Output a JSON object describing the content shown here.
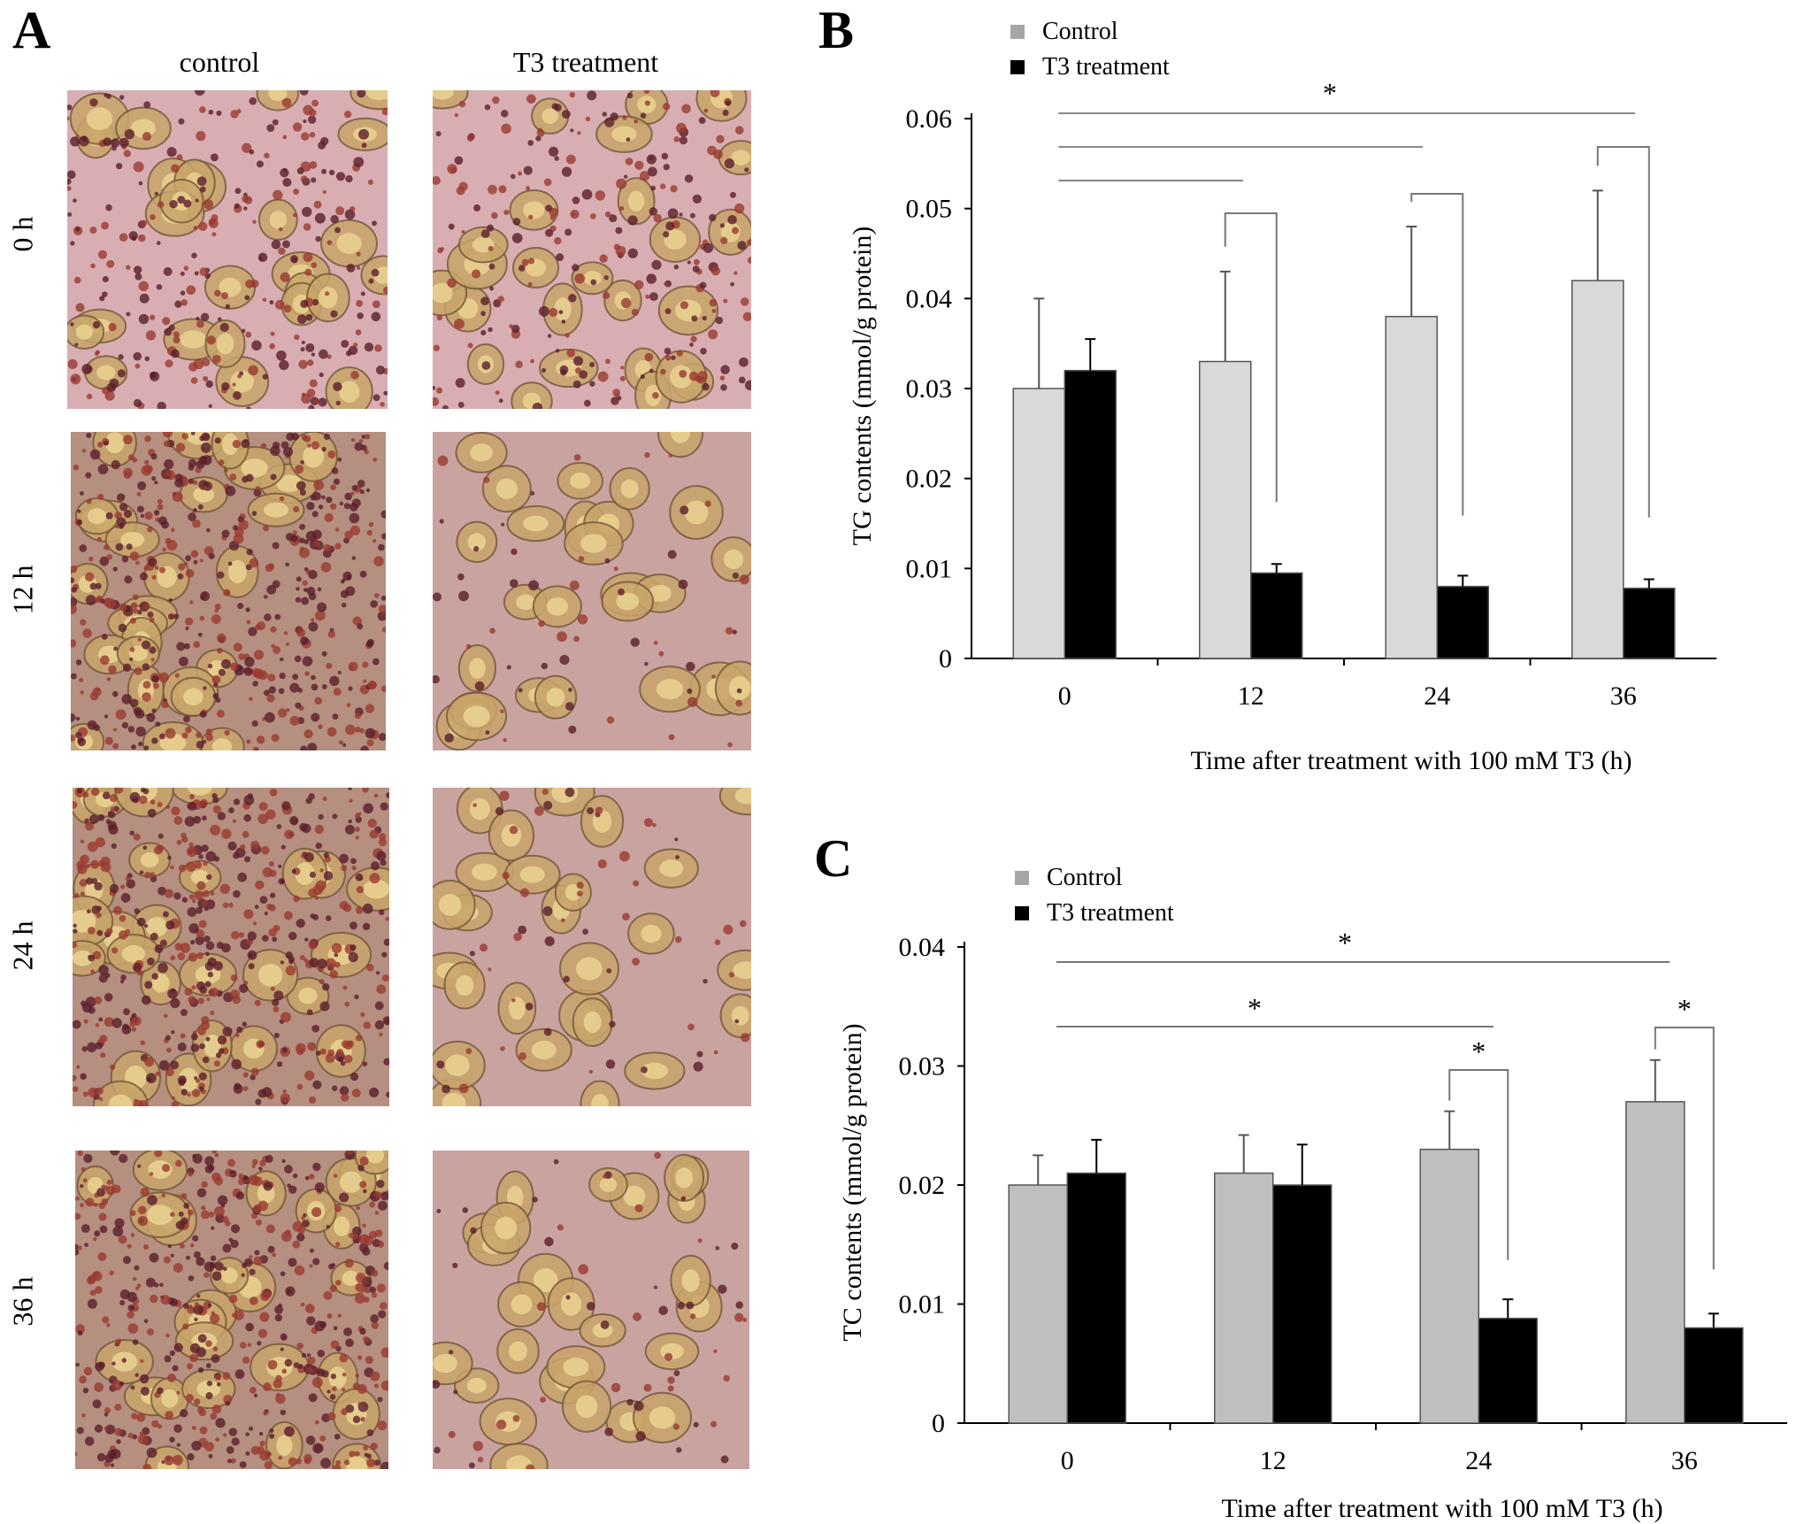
{
  "panels": {
    "a_letter": "A",
    "b_letter": "B",
    "c_letter": "C"
  },
  "micrographs": {
    "columns": [
      "control",
      "T3 treatment"
    ],
    "rows": [
      "0 h",
      "12 h",
      "24 h",
      "36 h"
    ],
    "description_colors": {
      "background_pink": "#d9b0b2",
      "stain_dark": "#5a1e2a",
      "stain_red": "#9a3a30",
      "cell_tan": "#c8a56a"
    }
  },
  "chart_data": [
    {
      "type": "bar",
      "panel": "B",
      "categories": [
        "0",
        "12",
        "24",
        "36"
      ],
      "series": [
        {
          "name": "Control",
          "values": [
            0.03,
            0.033,
            0.038,
            0.042
          ],
          "errors": [
            0.01,
            0.01,
            0.01,
            0.01
          ],
          "color": "#d9d9d9"
        },
        {
          "name": "T3 treatment",
          "values": [
            0.032,
            0.0095,
            0.008,
            0.0078
          ],
          "errors": [
            0.0035,
            0.001,
            0.0012,
            0.001
          ],
          "color": "#000000"
        }
      ],
      "xlabel": "Time after  treatment with  100  mM  T3  (h)",
      "ylabel": "TG contents (mmol/g protein)",
      "ylim": [
        0,
        0.06
      ],
      "yticks": [
        "0",
        "0.01",
        "0.02",
        "0.03",
        "0.04",
        "0.05",
        "0.06"
      ],
      "significance_label": "*",
      "legend_position": "top-left"
    },
    {
      "type": "bar",
      "panel": "C",
      "categories": [
        "0",
        "12",
        "24",
        "36"
      ],
      "series": [
        {
          "name": "Control",
          "values": [
            0.02,
            0.021,
            0.023,
            0.027
          ],
          "errors": [
            0.0025,
            0.0032,
            0.0032,
            0.0035
          ],
          "color": "#bfbfbf"
        },
        {
          "name": "T3 treatment",
          "values": [
            0.021,
            0.02,
            0.0088,
            0.008
          ],
          "errors": [
            0.0028,
            0.0034,
            0.0016,
            0.0012
          ],
          "color": "#000000"
        }
      ],
      "xlabel": "Time after  treatment with  100 mM  T3  (h)",
      "ylabel": "TC contents (mmol/g protein)",
      "ylim": [
        0,
        0.04
      ],
      "yticks": [
        "0",
        "0.01",
        "0.02",
        "0.03",
        "0.04"
      ],
      "significance_label": "*",
      "legend_position": "top-left"
    }
  ]
}
